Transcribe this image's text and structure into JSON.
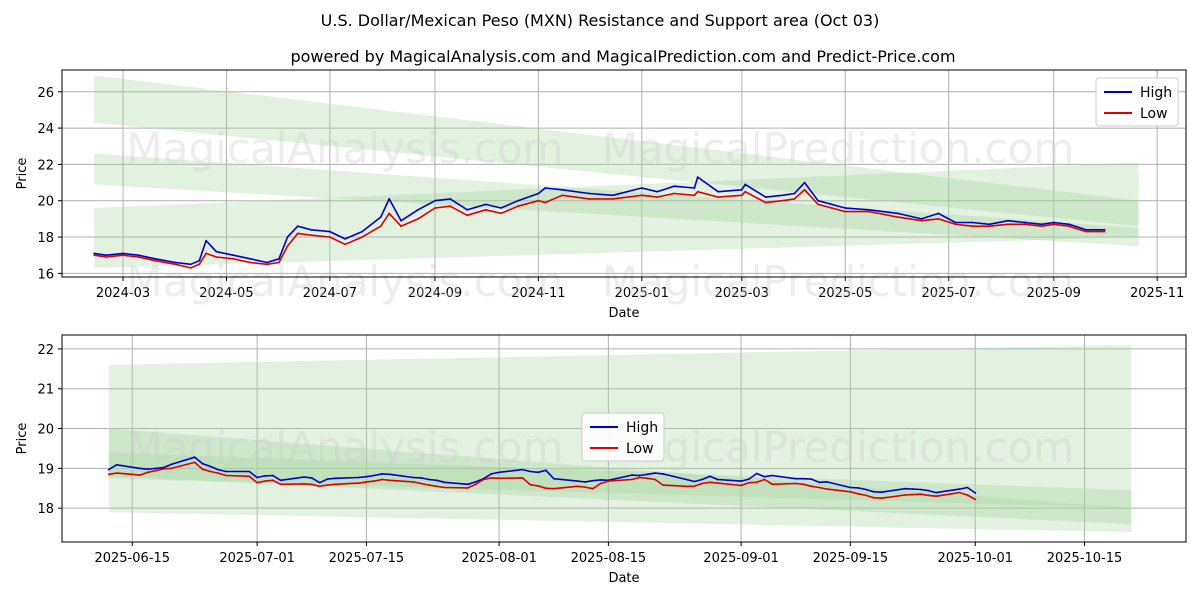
{
  "title": "U.S. Dollar/Mexican Peso (MXN) Resistance and Support area (Oct 03)",
  "subtitle": "powered by MagicalAnalysis.com and MagicalPrediction.com and Predict-Price.com",
  "watermarks": [
    "MagicalAnalysis.com",
    "MagicalPrediction.com"
  ],
  "colors": {
    "high": "#0000cc",
    "low": "#dd0000",
    "band": "#a8d5a2",
    "grid": "#b0b0b0"
  },
  "chart_data": [
    {
      "type": "line",
      "xlabel": "Date",
      "ylabel": "Price",
      "x_range": [
        "2024-01-25",
        "2025-11-18"
      ],
      "ylim": [
        15.8,
        27.2
      ],
      "xticks": [
        "2024-03",
        "2024-05",
        "2024-07",
        "2024-09",
        "2024-11",
        "2025-01",
        "2025-03",
        "2025-05",
        "2025-07",
        "2025-09",
        "2025-11"
      ],
      "xtick_dates": [
        "2024-03-01",
        "2024-05-01",
        "2024-07-01",
        "2024-09-01",
        "2024-11-01",
        "2025-01-01",
        "2025-03-01",
        "2025-05-01",
        "2025-07-01",
        "2025-09-01",
        "2025-11-01"
      ],
      "yticks": [
        "16",
        "18",
        "20",
        "22",
        "24",
        "26"
      ],
      "legend": {
        "entries": [
          "High",
          "Low"
        ],
        "placement": "top-right"
      },
      "bands": [
        {
          "start": "2024-02-13",
          "end": "2025-10-21",
          "top": [
            26.9,
            20.0
          ],
          "bottom": [
            24.3,
            18.6
          ]
        },
        {
          "start": "2024-02-13",
          "end": "2025-10-21",
          "top": [
            22.6,
            18.5
          ],
          "bottom": [
            20.9,
            17.5
          ]
        },
        {
          "start": "2024-02-13",
          "end": "2025-10-21",
          "top": [
            19.6,
            22.1
          ],
          "bottom": [
            16.3,
            18.0
          ]
        }
      ],
      "series": [
        {
          "name": "High",
          "x": [
            "2024-02-13",
            "2024-02-20",
            "2024-03-01",
            "2024-03-10",
            "2024-03-20",
            "2024-04-01",
            "2024-04-10",
            "2024-04-15",
            "2024-04-19",
            "2024-04-25",
            "2024-05-05",
            "2024-05-15",
            "2024-05-25",
            "2024-06-01",
            "2024-06-06",
            "2024-06-12",
            "2024-06-20",
            "2024-07-01",
            "2024-07-10",
            "2024-07-20",
            "2024-07-31",
            "2024-08-05",
            "2024-08-12",
            "2024-08-22",
            "2024-09-01",
            "2024-09-10",
            "2024-09-20",
            "2024-10-01",
            "2024-10-10",
            "2024-10-20",
            "2024-11-01",
            "2024-11-05",
            "2024-11-15",
            "2024-12-01",
            "2024-12-15",
            "2025-01-01",
            "2025-01-10",
            "2025-01-20",
            "2025-02-01",
            "2025-02-03",
            "2025-02-15",
            "2025-03-01",
            "2025-03-03",
            "2025-03-15",
            "2025-03-25",
            "2025-04-01",
            "2025-04-07",
            "2025-04-15",
            "2025-05-01",
            "2025-05-15",
            "2025-06-01",
            "2025-06-15",
            "2025-06-25",
            "2025-07-05",
            "2025-07-15",
            "2025-07-25",
            "2025-08-05",
            "2025-08-15",
            "2025-08-25",
            "2025-09-01",
            "2025-09-10",
            "2025-09-20",
            "2025-10-01"
          ],
          "values": [
            17.1,
            17.0,
            17.1,
            17.0,
            16.8,
            16.6,
            16.5,
            16.7,
            17.8,
            17.2,
            17.0,
            16.8,
            16.6,
            16.8,
            18.0,
            18.6,
            18.4,
            18.3,
            17.9,
            18.3,
            19.1,
            20.1,
            18.9,
            19.5,
            20.0,
            20.1,
            19.5,
            19.8,
            19.6,
            20.0,
            20.4,
            20.7,
            20.6,
            20.4,
            20.3,
            20.7,
            20.5,
            20.8,
            20.7,
            21.3,
            20.5,
            20.6,
            20.9,
            20.2,
            20.3,
            20.4,
            21.0,
            20.0,
            19.6,
            19.5,
            19.3,
            19.0,
            19.3,
            18.8,
            18.8,
            18.7,
            18.9,
            18.8,
            18.7,
            18.8,
            18.7,
            18.4,
            18.4
          ]
        },
        {
          "name": "Low",
          "x": [
            "2024-02-13",
            "2024-02-20",
            "2024-03-01",
            "2024-03-10",
            "2024-03-20",
            "2024-04-01",
            "2024-04-10",
            "2024-04-15",
            "2024-04-19",
            "2024-04-25",
            "2024-05-05",
            "2024-05-15",
            "2024-05-25",
            "2024-06-01",
            "2024-06-06",
            "2024-06-12",
            "2024-06-20",
            "2024-07-01",
            "2024-07-10",
            "2024-07-20",
            "2024-07-31",
            "2024-08-05",
            "2024-08-12",
            "2024-08-22",
            "2024-09-01",
            "2024-09-10",
            "2024-09-20",
            "2024-10-01",
            "2024-10-10",
            "2024-10-20",
            "2024-11-01",
            "2024-11-05",
            "2024-11-15",
            "2024-12-01",
            "2024-12-15",
            "2025-01-01",
            "2025-01-10",
            "2025-01-20",
            "2025-02-01",
            "2025-02-03",
            "2025-02-15",
            "2025-03-01",
            "2025-03-03",
            "2025-03-15",
            "2025-03-25",
            "2025-04-01",
            "2025-04-07",
            "2025-04-15",
            "2025-05-01",
            "2025-05-15",
            "2025-06-01",
            "2025-06-15",
            "2025-06-25",
            "2025-07-05",
            "2025-07-15",
            "2025-07-25",
            "2025-08-05",
            "2025-08-15",
            "2025-08-25",
            "2025-09-01",
            "2025-09-10",
            "2025-09-20",
            "2025-10-01"
          ],
          "values": [
            17.0,
            16.9,
            17.0,
            16.9,
            16.7,
            16.5,
            16.3,
            16.5,
            17.1,
            16.9,
            16.8,
            16.6,
            16.5,
            16.6,
            17.5,
            18.2,
            18.1,
            18.0,
            17.6,
            18.0,
            18.6,
            19.3,
            18.6,
            19.0,
            19.6,
            19.7,
            19.2,
            19.5,
            19.3,
            19.7,
            20.0,
            19.9,
            20.3,
            20.1,
            20.1,
            20.3,
            20.2,
            20.4,
            20.3,
            20.5,
            20.2,
            20.3,
            20.5,
            19.9,
            20.0,
            20.1,
            20.6,
            19.8,
            19.4,
            19.4,
            19.1,
            18.9,
            19.0,
            18.7,
            18.6,
            18.6,
            18.7,
            18.7,
            18.6,
            18.7,
            18.6,
            18.3,
            18.3
          ]
        }
      ]
    },
    {
      "type": "line",
      "xlabel": "Date",
      "ylabel": "Price",
      "x_range": [
        "2025-06-06",
        "2025-10-28"
      ],
      "ylim": [
        17.15,
        22.35
      ],
      "xticks": [
        "2025-06-15",
        "2025-07-01",
        "2025-07-15",
        "2025-08-01",
        "2025-08-15",
        "2025-09-01",
        "2025-09-15",
        "2025-10-01",
        "2025-10-15"
      ],
      "yticks": [
        "18",
        "19",
        "20",
        "21",
        "22"
      ],
      "legend": {
        "entries": [
          "High",
          "Low"
        ],
        "placement": "center"
      },
      "bands": [
        {
          "start": "2025-06-12",
          "end": "2025-10-21",
          "top": [
            21.6,
            22.1
          ],
          "bottom": [
            17.9,
            17.4
          ]
        },
        {
          "start": "2025-06-12",
          "end": "2025-10-21",
          "top": [
            20.0,
            18.0
          ],
          "bottom": [
            18.8,
            17.6
          ]
        },
        {
          "start": "2025-06-12",
          "end": "2025-10-21",
          "top": [
            19.4,
            18.45
          ],
          "bottom": [
            18.75,
            18.0
          ]
        }
      ],
      "series": [
        {
          "name": "High",
          "x": [
            "2025-06-12",
            "2025-06-13",
            "2025-06-16",
            "2025-06-17",
            "2025-06-18",
            "2025-06-19",
            "2025-06-20",
            "2025-06-23",
            "2025-06-24",
            "2025-06-25",
            "2025-06-26",
            "2025-06-27",
            "2025-06-30",
            "2025-07-01",
            "2025-07-02",
            "2025-07-03",
            "2025-07-04",
            "2025-07-07",
            "2025-07-08",
            "2025-07-09",
            "2025-07-10",
            "2025-07-11",
            "2025-07-14",
            "2025-07-15",
            "2025-07-16",
            "2025-07-17",
            "2025-07-18",
            "2025-07-21",
            "2025-07-22",
            "2025-07-23",
            "2025-07-24",
            "2025-07-25",
            "2025-07-28",
            "2025-07-29",
            "2025-07-30",
            "2025-07-31",
            "2025-08-01",
            "2025-08-04",
            "2025-08-05",
            "2025-08-06",
            "2025-08-07",
            "2025-08-08",
            "2025-08-11",
            "2025-08-12",
            "2025-08-13",
            "2025-08-14",
            "2025-08-15",
            "2025-08-18",
            "2025-08-19",
            "2025-08-20",
            "2025-08-21",
            "2025-08-22",
            "2025-08-25",
            "2025-08-26",
            "2025-08-27",
            "2025-08-28",
            "2025-08-29",
            "2025-09-01",
            "2025-09-02",
            "2025-09-03",
            "2025-09-04",
            "2025-09-05",
            "2025-09-08",
            "2025-09-09",
            "2025-09-10",
            "2025-09-11",
            "2025-09-12",
            "2025-09-15",
            "2025-09-16",
            "2025-09-17",
            "2025-09-18",
            "2025-09-19",
            "2025-09-22",
            "2025-09-23",
            "2025-09-24",
            "2025-09-25",
            "2025-09-26",
            "2025-09-29",
            "2025-09-30",
            "2025-10-01"
          ],
          "values": [
            18.97,
            19.09,
            19.0,
            18.98,
            19.0,
            19.02,
            19.1,
            19.28,
            19.12,
            19.05,
            18.97,
            18.92,
            18.92,
            18.77,
            18.81,
            18.82,
            18.7,
            18.78,
            18.76,
            18.64,
            18.73,
            18.75,
            18.77,
            18.79,
            18.82,
            18.86,
            18.85,
            18.77,
            18.76,
            18.72,
            18.7,
            18.65,
            18.6,
            18.66,
            18.74,
            18.86,
            18.9,
            18.97,
            18.92,
            18.9,
            18.95,
            18.74,
            18.68,
            18.66,
            18.69,
            18.71,
            18.7,
            18.83,
            18.82,
            18.85,
            18.88,
            18.86,
            18.72,
            18.67,
            18.72,
            18.8,
            18.72,
            18.68,
            18.73,
            18.87,
            18.79,
            18.82,
            18.74,
            18.74,
            18.73,
            18.65,
            18.66,
            18.52,
            18.51,
            18.47,
            18.41,
            18.4,
            18.49,
            18.48,
            18.47,
            18.44,
            18.39,
            18.48,
            18.52,
            18.38
          ]
        },
        {
          "name": "Low",
          "x": [
            "2025-06-12",
            "2025-06-13",
            "2025-06-16",
            "2025-06-17",
            "2025-06-18",
            "2025-06-19",
            "2025-06-20",
            "2025-06-23",
            "2025-06-24",
            "2025-06-25",
            "2025-06-26",
            "2025-06-27",
            "2025-06-30",
            "2025-07-01",
            "2025-07-02",
            "2025-07-03",
            "2025-07-04",
            "2025-07-07",
            "2025-07-08",
            "2025-07-09",
            "2025-07-10",
            "2025-07-11",
            "2025-07-14",
            "2025-07-15",
            "2025-07-16",
            "2025-07-17",
            "2025-07-18",
            "2025-07-21",
            "2025-07-22",
            "2025-07-23",
            "2025-07-24",
            "2025-07-25",
            "2025-07-28",
            "2025-07-29",
            "2025-07-30",
            "2025-07-31",
            "2025-08-01",
            "2025-08-04",
            "2025-08-05",
            "2025-08-06",
            "2025-08-07",
            "2025-08-08",
            "2025-08-11",
            "2025-08-12",
            "2025-08-13",
            "2025-08-14",
            "2025-08-15",
            "2025-08-18",
            "2025-08-19",
            "2025-08-20",
            "2025-08-21",
            "2025-08-22",
            "2025-08-25",
            "2025-08-26",
            "2025-08-27",
            "2025-08-28",
            "2025-08-29",
            "2025-09-01",
            "2025-09-02",
            "2025-09-03",
            "2025-09-04",
            "2025-09-05",
            "2025-09-08",
            "2025-09-09",
            "2025-09-10",
            "2025-09-11",
            "2025-09-12",
            "2025-09-15",
            "2025-09-16",
            "2025-09-17",
            "2025-09-18",
            "2025-09-19",
            "2025-09-22",
            "2025-09-23",
            "2025-09-24",
            "2025-09-25",
            "2025-09-26",
            "2025-09-29",
            "2025-09-30",
            "2025-10-01"
          ],
          "values": [
            18.85,
            18.88,
            18.83,
            18.9,
            18.94,
            18.99,
            19.0,
            19.15,
            18.98,
            18.92,
            18.88,
            18.82,
            18.8,
            18.64,
            18.68,
            18.7,
            18.6,
            18.61,
            18.6,
            18.55,
            18.58,
            18.6,
            18.63,
            18.66,
            18.68,
            18.72,
            18.7,
            18.66,
            18.62,
            18.58,
            18.55,
            18.52,
            18.51,
            18.6,
            18.72,
            18.76,
            18.75,
            18.76,
            18.59,
            18.56,
            18.5,
            18.49,
            18.55,
            18.53,
            18.49,
            18.62,
            18.68,
            18.72,
            18.77,
            18.75,
            18.72,
            18.58,
            18.55,
            18.55,
            18.62,
            18.65,
            18.63,
            18.57,
            18.64,
            18.65,
            18.72,
            18.6,
            18.62,
            18.6,
            18.55,
            18.52,
            18.48,
            18.41,
            18.36,
            18.32,
            18.26,
            18.25,
            18.33,
            18.34,
            18.35,
            18.32,
            18.3,
            18.39,
            18.33,
            18.22
          ]
        }
      ]
    }
  ]
}
